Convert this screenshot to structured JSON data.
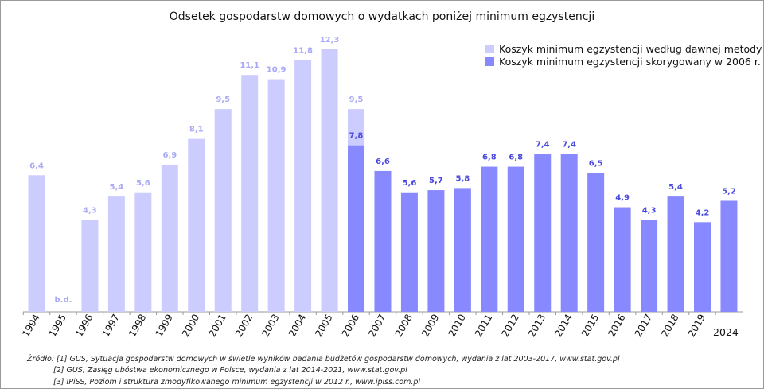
{
  "chart_data": {
    "type": "bar",
    "title": "Odsetek gospodarstw domowych o wydatkach poniżej minimum egzystencji",
    "xlabel": "",
    "ylabel": "",
    "ylim": [
      0,
      12.3
    ],
    "grid": false,
    "legend_position": "top-right",
    "categories": [
      "1994",
      "1995",
      "1996",
      "1997",
      "1998",
      "1999",
      "2000",
      "2001",
      "2002",
      "2003",
      "2004",
      "2005",
      "2006",
      "2007",
      "2008",
      "2009",
      "2010",
      "2011",
      "2012",
      "2013",
      "2014",
      "2015",
      "2016",
      "2017",
      "2018",
      "2019",
      "2024"
    ],
    "series": [
      {
        "name": "Koszyk minimum egzystencji według dawnej metody",
        "color": "#ccccff",
        "label_color": "#a9a9f5",
        "values": [
          6.4,
          null,
          4.3,
          5.4,
          5.6,
          6.9,
          8.1,
          9.5,
          11.1,
          10.9,
          11.8,
          12.3,
          9.5,
          null,
          null,
          null,
          null,
          null,
          null,
          null,
          null,
          null,
          null,
          null,
          null,
          null,
          null
        ],
        "labels": [
          "6,4",
          "b.d.",
          "4,3",
          "5,4",
          "5,6",
          "6,9",
          "8,1",
          "9,5",
          "11,1",
          "10,9",
          "11,8",
          "12,3",
          "9,5",
          "",
          "",
          "",
          "",
          "",
          "",
          "",
          "",
          "",
          "",
          "",
          "",
          "",
          ""
        ]
      },
      {
        "name": "Koszyk minimum egzystencji skorygowany w 2006 r.",
        "color": "#8888ff",
        "label_color": "#4a4ae0",
        "values": [
          null,
          null,
          null,
          null,
          null,
          null,
          null,
          null,
          null,
          null,
          null,
          null,
          7.8,
          6.6,
          5.6,
          5.7,
          5.8,
          6.8,
          6.8,
          7.4,
          7.4,
          6.5,
          4.9,
          4.3,
          5.4,
          4.2,
          5.2
        ],
        "labels": [
          "",
          "",
          "",
          "",
          "",
          "",
          "",
          "",
          "",
          "",
          "",
          "",
          "7,8",
          "6,6",
          "5,6",
          "5,7",
          "5,8",
          "6,8",
          "6,8",
          "7,4",
          "7,4",
          "6,5",
          "4,9",
          "4,3",
          "5,4",
          "4,2",
          "5,2"
        ]
      }
    ]
  },
  "sources": [
    "Źródło: [1] GUS, Sytuacja gospodarstw domowych w świetle wyników badania budżetów gospodarstw domowych, wydania z lat 2003-2017, www.stat.gov.pl",
    "[2] GUS, Zasięg ubóstwa ekonomicznego w Polsce, wydania z lat 2014-2021, www.stat.gov.pl",
    "[3] IPiSS, Poziom i struktura zmodyfikowanego minimum egzystencji w 2012 r., www.ipiss.com.pl"
  ]
}
